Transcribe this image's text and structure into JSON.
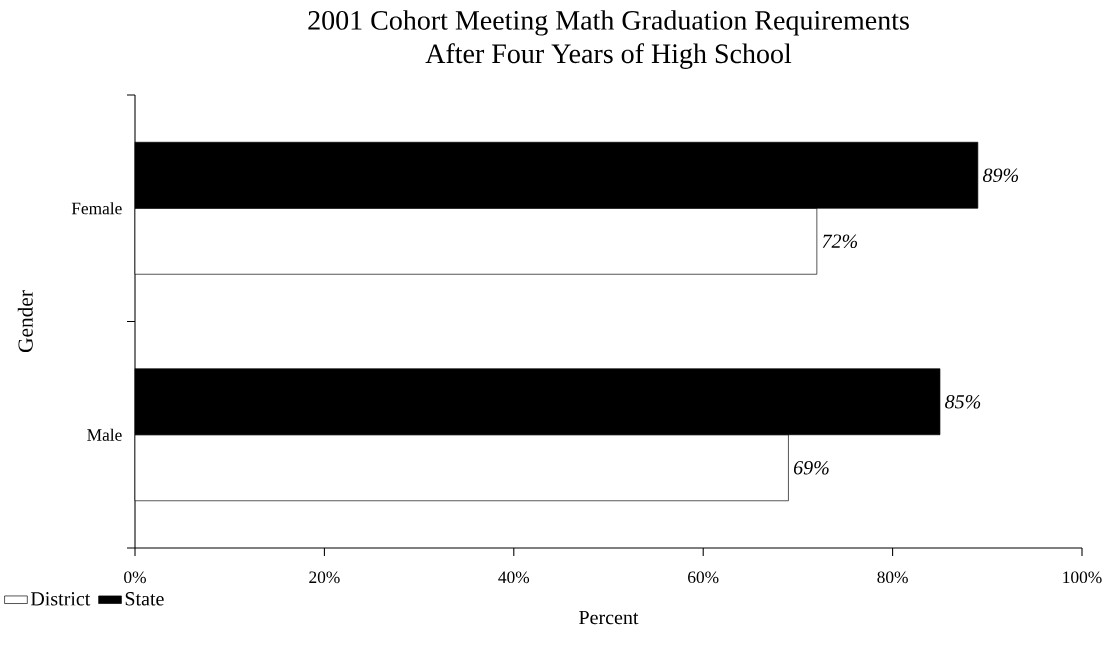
{
  "chart_data": {
    "type": "bar",
    "orientation": "horizontal",
    "title": "2001 Cohort Meeting Math Graduation Requirements\nAfter Four Years of High School",
    "xlabel": "Percent",
    "ylabel": "Gender",
    "categories": [
      "Female",
      "Male"
    ],
    "series": [
      {
        "name": "District",
        "color": "#ffffff",
        "values": [
          72,
          69
        ],
        "value_labels": [
          "72%",
          "69%"
        ]
      },
      {
        "name": "State",
        "color": "#000000",
        "values": [
          89,
          85
        ],
        "value_labels": [
          "89%",
          "85%"
        ]
      }
    ],
    "xlim": [
      0,
      100
    ],
    "xticks": [
      {
        "value": 0,
        "label": "0%"
      },
      {
        "value": 20,
        "label": "20%"
      },
      {
        "value": 40,
        "label": "40%"
      },
      {
        "value": 60,
        "label": "60%"
      },
      {
        "value": 80,
        "label": "80%"
      },
      {
        "value": 100,
        "label": "100%"
      }
    ],
    "grid": false,
    "legend": "bottom left"
  }
}
